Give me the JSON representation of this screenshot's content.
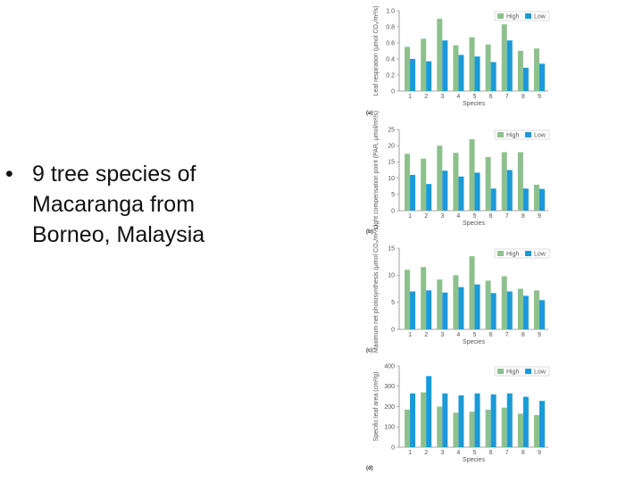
{
  "slide": {
    "bullet_symbol": "•",
    "bullet_lines": [
      "9 tree species of",
      "Macaranga from",
      "Borneo, Malaysia"
    ]
  },
  "colors": {
    "high": "#8dc08d",
    "low": "#1a9ad6",
    "axis": "#888888"
  },
  "chart_data": [
    {
      "type": "bar",
      "panel": "(a)",
      "categories": [
        "1",
        "2",
        "3",
        "4",
        "5",
        "6",
        "7",
        "8",
        "9"
      ],
      "ylabel": "Leaf respiration (μmol CO₂/m²/s)",
      "xlabel": "Species",
      "ylim": [
        0,
        1.0
      ],
      "yticks": [
        "0",
        "0.2",
        "0.4",
        "0.6",
        "0.8",
        "1.0"
      ],
      "yticks_values": [
        0,
        0.2,
        0.4,
        0.6,
        0.8,
        1.0
      ],
      "legend_position": "top-right",
      "series": [
        {
          "name": "High",
          "values": [
            0.55,
            0.65,
            0.9,
            0.57,
            0.67,
            0.58,
            0.83,
            0.5,
            0.53
          ]
        },
        {
          "name": "Low",
          "values": [
            0.4,
            0.37,
            0.63,
            0.45,
            0.43,
            0.36,
            0.63,
            0.29,
            0.34
          ]
        }
      ]
    },
    {
      "type": "bar",
      "panel": "(b)",
      "categories": [
        "1",
        "2",
        "3",
        "4",
        "5",
        "6",
        "7",
        "8",
        "9"
      ],
      "ylabel": "Light compensation point (PAR, μmol/m²/s)",
      "xlabel": "Species",
      "ylim": [
        0,
        25
      ],
      "yticks": [
        "0",
        "5",
        "10",
        "15",
        "20",
        "25"
      ],
      "yticks_values": [
        0,
        5,
        10,
        15,
        20,
        25
      ],
      "legend_position": "top-right",
      "series": [
        {
          "name": "High",
          "values": [
            17.5,
            16,
            20,
            17.8,
            22,
            16.5,
            18,
            18,
            8
          ]
        },
        {
          "name": "Low",
          "values": [
            11,
            8.2,
            12.3,
            10.5,
            11.7,
            6.8,
            12.5,
            6.8,
            6.7
          ]
        }
      ]
    },
    {
      "type": "bar",
      "panel": "(c)",
      "categories": [
        "1",
        "2",
        "3",
        "4",
        "5",
        "6",
        "7",
        "8",
        "9"
      ],
      "ylabel": "Maximum net photosynthesis (μmol CO₂/m²/s)",
      "xlabel": "Species",
      "ylim": [
        0,
        15
      ],
      "yticks": [
        "0",
        "5",
        "10",
        "15"
      ],
      "yticks_values": [
        0,
        5,
        10,
        15
      ],
      "legend_position": "top-right",
      "series": [
        {
          "name": "High",
          "values": [
            11,
            11.5,
            9.2,
            10,
            13.5,
            9,
            9.8,
            7.5,
            7.2
          ]
        },
        {
          "name": "Low",
          "values": [
            7,
            7.2,
            6.8,
            7.8,
            8.3,
            6.7,
            7,
            6.2,
            5.4
          ]
        }
      ]
    },
    {
      "type": "bar",
      "panel": "(d)",
      "categories": [
        "1",
        "2",
        "3",
        "4",
        "5",
        "6",
        "7",
        "8",
        "9"
      ],
      "ylabel": "Specific leaf area (cm²/g)",
      "xlabel": "Species",
      "ylim": [
        0,
        400
      ],
      "yticks": [
        "0",
        "100",
        "200",
        "300",
        "400"
      ],
      "yticks_values": [
        0,
        100,
        200,
        300,
        400
      ],
      "legend_position": "top-right",
      "series": [
        {
          "name": "High",
          "values": [
            185,
            270,
            200,
            170,
            175,
            185,
            195,
            165,
            158
          ]
        },
        {
          "name": "Low",
          "values": [
            265,
            350,
            265,
            255,
            265,
            260,
            265,
            248,
            228
          ]
        }
      ]
    }
  ]
}
